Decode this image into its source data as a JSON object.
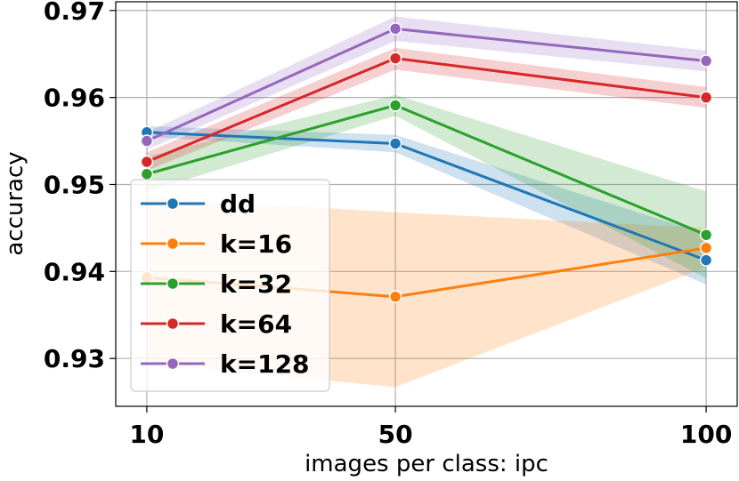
{
  "chart_data": {
    "type": "line",
    "title": "",
    "xlabel": "images per class: ipc",
    "ylabel": "accuracy",
    "x": [
      10,
      50,
      100
    ],
    "x_tick_labels": [
      "10",
      "50",
      "100"
    ],
    "xlim": [
      5,
      105
    ],
    "ylim": [
      0.9245,
      0.971
    ],
    "y_ticks": [
      0.93,
      0.94,
      0.95,
      0.96,
      0.97
    ],
    "y_tick_labels": [
      "0.93",
      "0.94",
      "0.95",
      "0.96",
      "0.97"
    ],
    "grid": true,
    "legend_position": "lower-left",
    "series": [
      {
        "name": "dd",
        "color": "#1f77b4",
        "values": [
          0.956,
          0.9547,
          0.9413
        ],
        "band_lower": [
          0.9555,
          0.9537,
          0.9385
        ],
        "band_upper": [
          0.9567,
          0.9557,
          0.9443
        ]
      },
      {
        "name": "k=16",
        "color": "#ff7f0e",
        "values": [
          0.9393,
          0.9371,
          0.9427
        ],
        "band_lower": [
          0.9295,
          0.9267,
          0.9405
        ],
        "band_upper": [
          0.9485,
          0.9468,
          0.945
        ]
      },
      {
        "name": "k=32",
        "color": "#2ca02c",
        "values": [
          0.9512,
          0.9591,
          0.9442
        ],
        "band_lower": [
          0.9492,
          0.9579,
          0.9392
        ],
        "band_upper": [
          0.9532,
          0.9603,
          0.9492
        ]
      },
      {
        "name": "k=64",
        "color": "#d62728",
        "values": [
          0.9526,
          0.9645,
          0.96
        ],
        "band_lower": [
          0.9516,
          0.9632,
          0.9588
        ],
        "band_upper": [
          0.9537,
          0.9657,
          0.9612
        ]
      },
      {
        "name": "k=128",
        "color": "#9467bd",
        "values": [
          0.955,
          0.9679,
          0.9642
        ],
        "band_lower": [
          0.954,
          0.9665,
          0.963
        ],
        "band_upper": [
          0.956,
          0.9693,
          0.9654
        ]
      }
    ]
  }
}
